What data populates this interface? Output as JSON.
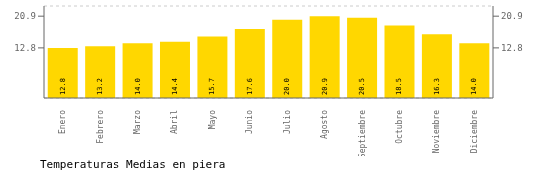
{
  "chart_data": {
    "type": "bar",
    "title": "Temperaturas Medias en piera",
    "categories": [
      "Enero",
      "Febrero",
      "Marzo",
      "Abril",
      "Mayo",
      "Junio",
      "Julio",
      "Agosto",
      "Septiembre",
      "Octubre",
      "Noviembre",
      "Diciembre"
    ],
    "values": [
      12.8,
      13.2,
      14.0,
      14.4,
      15.7,
      17.6,
      20.0,
      20.9,
      20.5,
      18.5,
      16.3,
      14.0
    ],
    "value_labels": [
      "12.8",
      "13.2",
      "14.0",
      "14.4",
      "15.7",
      "17.6",
      "20.0",
      "20.9",
      "20.5",
      "18.5",
      "16.3",
      "14.0"
    ],
    "data_labels": true,
    "color": "#FFD700",
    "ylim": [
      0,
      23.5
    ],
    "yticks": [
      12.8,
      20.9
    ],
    "grid": true
  }
}
